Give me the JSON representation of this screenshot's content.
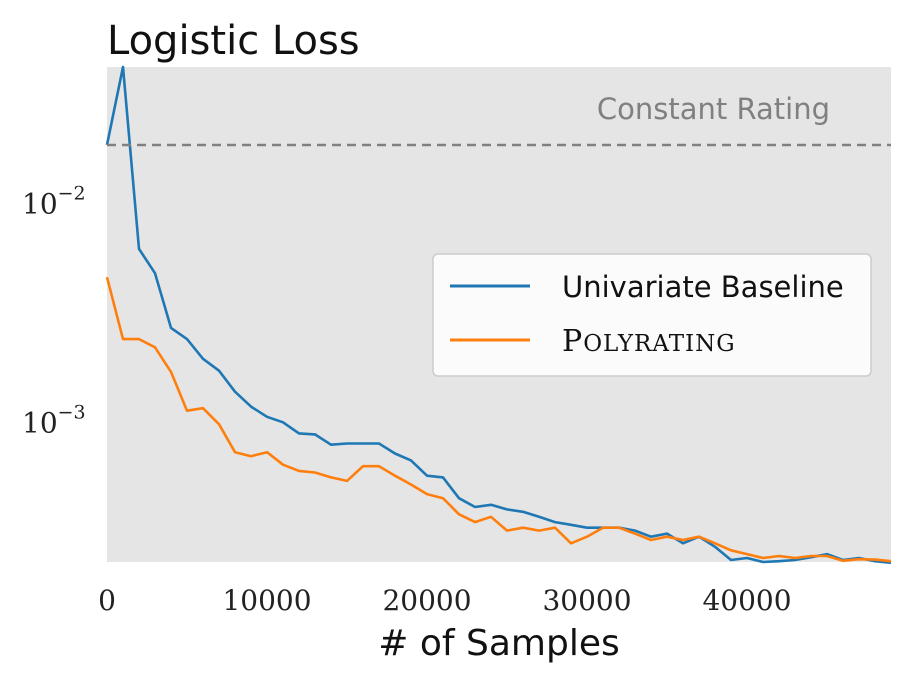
{
  "chart_data": {
    "type": "line",
    "title": "Logistic Loss",
    "xlabel": "# of Samples",
    "ylabel": "",
    "yscale": "log",
    "xlim": [
      0,
      49000
    ],
    "ylim": [
      0.00023,
      0.042
    ],
    "grid": false,
    "background": "#e5e5e5",
    "x_ticks": [
      {
        "value": 0,
        "label": "0"
      },
      {
        "value": 10000,
        "label": "10000"
      },
      {
        "value": 20000,
        "label": "20000"
      },
      {
        "value": 30000,
        "label": "30000"
      },
      {
        "value": 40000,
        "label": "40000"
      }
    ],
    "y_ticks": [
      {
        "value": 0.01,
        "base": "10",
        "exp": "−2"
      },
      {
        "value": 0.001,
        "base": "10",
        "exp": "−3"
      }
    ],
    "reference_line": {
      "value": 0.0185,
      "label": "Constant Rating",
      "color": "#808080"
    },
    "legend": {
      "position": "center-right"
    },
    "x": [
      0,
      1000,
      2000,
      3000,
      4000,
      5000,
      6000,
      7000,
      8000,
      9000,
      10000,
      11000,
      12000,
      13000,
      14000,
      15000,
      16000,
      17000,
      18000,
      19000,
      20000,
      21000,
      22000,
      23000,
      24000,
      25000,
      26000,
      27000,
      28000,
      29000,
      30000,
      31000,
      32000,
      33000,
      34000,
      35000,
      36000,
      37000,
      38000,
      39000,
      40000,
      41000,
      42000,
      43000,
      44000,
      45000,
      46000,
      47000,
      48000,
      49000
    ],
    "series": [
      {
        "name": "Univariate Baseline",
        "color": "#1f77b4",
        "values": [
          0.0185,
          0.042,
          0.0062,
          0.0048,
          0.0027,
          0.0024,
          0.00195,
          0.00172,
          0.00138,
          0.00118,
          0.00106,
          0.001,
          0.00089,
          0.00088,
          0.00079,
          0.0008,
          0.0008,
          0.0008,
          0.00072,
          0.00067,
          0.00057,
          0.00056,
          0.00045,
          0.00041,
          0.00042,
          0.0004,
          0.00039,
          0.00037,
          0.00035,
          0.00034,
          0.00033,
          0.00033,
          0.00033,
          0.00032,
          0.0003,
          0.00031,
          0.00028,
          0.0003,
          0.00027,
          0.000235,
          0.00024,
          0.00023,
          0.000232,
          0.000235,
          0.000242,
          0.00025,
          0.000235,
          0.00024,
          0.000232,
          0.000228
        ]
      },
      {
        "name": "Polyrating",
        "color": "#ff7f0e",
        "values": [
          0.0046,
          0.0024,
          0.0024,
          0.0022,
          0.0017,
          0.00113,
          0.00116,
          0.00098,
          0.00073,
          0.0007,
          0.00073,
          0.00064,
          0.0006,
          0.00059,
          0.00056,
          0.00054,
          0.00063,
          0.00063,
          0.00057,
          0.00052,
          0.00047,
          0.00045,
          0.00038,
          0.00035,
          0.00037,
          0.00032,
          0.00033,
          0.00032,
          0.00033,
          0.00028,
          0.0003,
          0.00033,
          0.00033,
          0.00031,
          0.00029,
          0.0003,
          0.00029,
          0.0003,
          0.00028,
          0.00026,
          0.00025,
          0.00024,
          0.000245,
          0.00024,
          0.000245,
          0.000245,
          0.000233,
          0.000237,
          0.000236,
          0.000232
        ]
      }
    ]
  }
}
